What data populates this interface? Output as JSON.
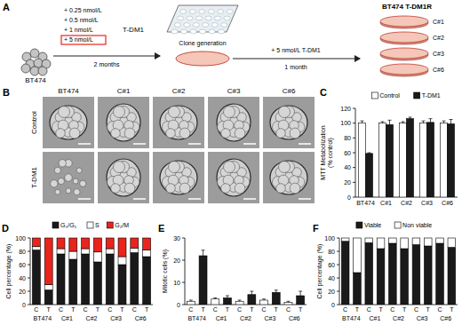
{
  "panel_a": {
    "panel_label": "A",
    "cell_line": "BT474",
    "doses": [
      "+ 0.25 nmol/L",
      "+ 0.5 nmol/L",
      "+ 1 nmol/L",
      "+ 5 nmol/L"
    ],
    "drug": "T-DM1",
    "duration1": "2 months",
    "step": "Clone generation",
    "treatment": "+ 5 nmol/L T-DM1",
    "duration2": "1 month",
    "result": "BT474 T-DM1R",
    "clones": [
      "C#1",
      "C#2",
      "C#3",
      "C#6"
    ]
  },
  "panel_b": {
    "panel_label": "B",
    "columns": [
      "BT474",
      "C#1",
      "C#2",
      "C#3",
      "C#6"
    ],
    "rows": [
      "Control",
      "T-DM1"
    ]
  },
  "chart_data": [
    {
      "panel_label": "C",
      "type": "bar",
      "ylabel": [
        "MTT Metabolization",
        "(% control)"
      ],
      "categories": [
        "BT474",
        "C#1",
        "C#2",
        "C#3",
        "C#6"
      ],
      "series": [
        {
          "name": "Control",
          "color": "#ffffff",
          "values": [
            100,
            100,
            100,
            100,
            100
          ],
          "errors": [
            3,
            2,
            2,
            3,
            3
          ]
        },
        {
          "name": "T-DM1",
          "color": "#1a1a1a",
          "values": [
            59,
            98,
            106,
            101,
            99
          ],
          "errors": [
            1,
            6,
            2,
            5,
            6
          ]
        }
      ],
      "ylim": [
        0,
        120
      ],
      "yticks": [
        0,
        20,
        40,
        60,
        80,
        100,
        120
      ],
      "legend": "top"
    },
    {
      "panel_label": "D",
      "type": "bar",
      "stacked": true,
      "ylabel": "Cell percentage (%)",
      "categories": [
        "C",
        "T",
        "C",
        "T",
        "C",
        "T",
        "C",
        "T",
        "C",
        "T"
      ],
      "groups": [
        "BT474",
        "C#1",
        "C#2",
        "C#3",
        "C#6"
      ],
      "series": [
        {
          "name": "G₀/G₁",
          "color": "#1a1a1a",
          "values": [
            82,
            22,
            76,
            68,
            76,
            64,
            76,
            60,
            78,
            72
          ]
        },
        {
          "name": "S",
          "color": "#ffffff",
          "values": [
            5,
            8,
            8,
            12,
            8,
            15,
            8,
            12,
            7,
            10
          ]
        },
        {
          "name": "G₂/M",
          "color": "#e8251c",
          "values": [
            13,
            70,
            16,
            20,
            16,
            21,
            16,
            28,
            15,
            18
          ]
        }
      ],
      "ylim": [
        0,
        100
      ],
      "yticks": [
        0,
        20,
        40,
        60,
        80,
        100
      ],
      "legend": "top"
    },
    {
      "panel_label": "E",
      "type": "bar",
      "ylabel": "Mitotic cells (%)",
      "categories": [
        "C",
        "T",
        "C",
        "T",
        "C",
        "T",
        "C",
        "T",
        "C",
        "T"
      ],
      "groups": [
        "BT474",
        "C#1",
        "C#2",
        "C#3",
        "C#6"
      ],
      "values": [
        1.5,
        22,
        2.5,
        3,
        1.5,
        4.5,
        2,
        5.5,
        1,
        4
      ],
      "errors": [
        0.5,
        2.5,
        0.5,
        1,
        0.5,
        1.5,
        0.5,
        1,
        0.5,
        2
      ],
      "colors": [
        "#ffffff",
        "#1a1a1a",
        "#ffffff",
        "#1a1a1a",
        "#ffffff",
        "#1a1a1a",
        "#ffffff",
        "#1a1a1a",
        "#ffffff",
        "#1a1a1a"
      ],
      "ylim": [
        0,
        30
      ],
      "yticks": [
        0,
        10,
        20,
        30
      ]
    },
    {
      "panel_label": "F",
      "type": "bar",
      "stacked": true,
      "ylabel": "Cell percentage (%)",
      "categories": [
        "C",
        "T",
        "C",
        "T",
        "C",
        "T",
        "C",
        "T",
        "C",
        "T"
      ],
      "groups": [
        "BT474",
        "C#1",
        "C#2",
        "C#3",
        "C#6"
      ],
      "series": [
        {
          "name": "Viable",
          "color": "#1a1a1a",
          "values": [
            95,
            48,
            93,
            84,
            92,
            84,
            90,
            88,
            92,
            86
          ]
        },
        {
          "name": "Non viable",
          "color": "#ffffff",
          "values": [
            5,
            52,
            7,
            16,
            8,
            16,
            10,
            12,
            8,
            14
          ]
        }
      ],
      "ylim": [
        0,
        100
      ],
      "yticks": [
        0,
        20,
        40,
        60,
        80,
        100
      ],
      "legend": "top"
    }
  ]
}
